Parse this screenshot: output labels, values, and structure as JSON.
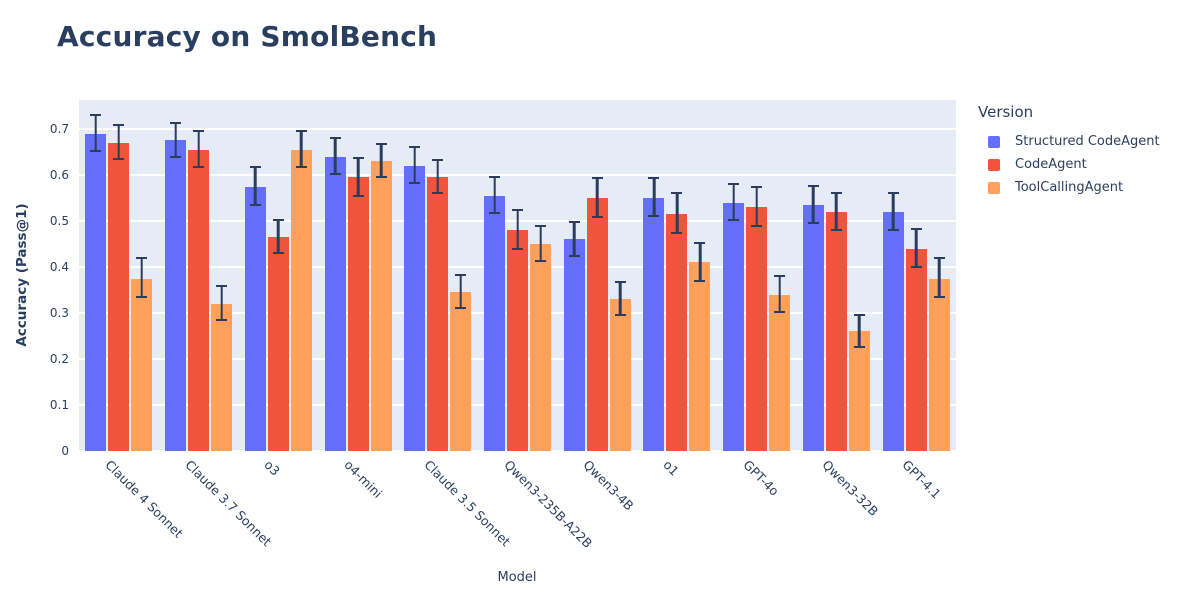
{
  "colors": {
    "plot_background": "#e5ecf6",
    "grid": "#ffffff",
    "text": "#2a3f5f",
    "error_bar": "#2b3d5c"
  },
  "chart_data": {
    "type": "bar",
    "title": "Accuracy on SmolBench",
    "xlabel": "Model",
    "ylabel": "Accuracy (Pass@1)",
    "legend_title": "Version",
    "legend_position": "right-top",
    "grid": true,
    "ylim": [
      0,
      0.763
    ],
    "ytick_labels": [
      "0",
      "0.1",
      "0.2",
      "0.3",
      "0.4",
      "0.5",
      "0.6",
      "0.7"
    ],
    "categories": [
      "Claude 4 Sonnet",
      "Claude 3.7 Sonnet",
      "o3",
      "o4-mini",
      "Claude 3.5 Sonnet",
      "Qwen3-235B-A22B",
      "Qwen3-4B",
      "o1",
      "GPT-4o",
      "Qwen3-32B",
      "GPT-4.1"
    ],
    "series": [
      {
        "name": "Structured CodeAgent",
        "color": "#636efa",
        "values": [
          0.69,
          0.675,
          0.575,
          0.64,
          0.62,
          0.555,
          0.46,
          0.55,
          0.54,
          0.535,
          0.52
        ],
        "errors": [
          0.042,
          0.04,
          0.044,
          0.042,
          0.042,
          0.043,
          0.04,
          0.045,
          0.042,
          0.044,
          0.044
        ]
      },
      {
        "name": "CodeAgent",
        "color": "#ef553b",
        "values": [
          0.67,
          0.655,
          0.465,
          0.595,
          0.595,
          0.48,
          0.55,
          0.515,
          0.53,
          0.52,
          0.44
        ],
        "errors": [
          0.04,
          0.043,
          0.04,
          0.045,
          0.04,
          0.046,
          0.046,
          0.047,
          0.045,
          0.044,
          0.045
        ]
      },
      {
        "name": "ToolCallingAgent",
        "color": "#ffa15a",
        "values": [
          0.375,
          0.32,
          0.655,
          0.63,
          0.345,
          0.45,
          0.33,
          0.41,
          0.34,
          0.26,
          0.375
        ],
        "errors": [
          0.046,
          0.04,
          0.042,
          0.04,
          0.04,
          0.042,
          0.04,
          0.045,
          0.042,
          0.038,
          0.046
        ]
      }
    ]
  }
}
